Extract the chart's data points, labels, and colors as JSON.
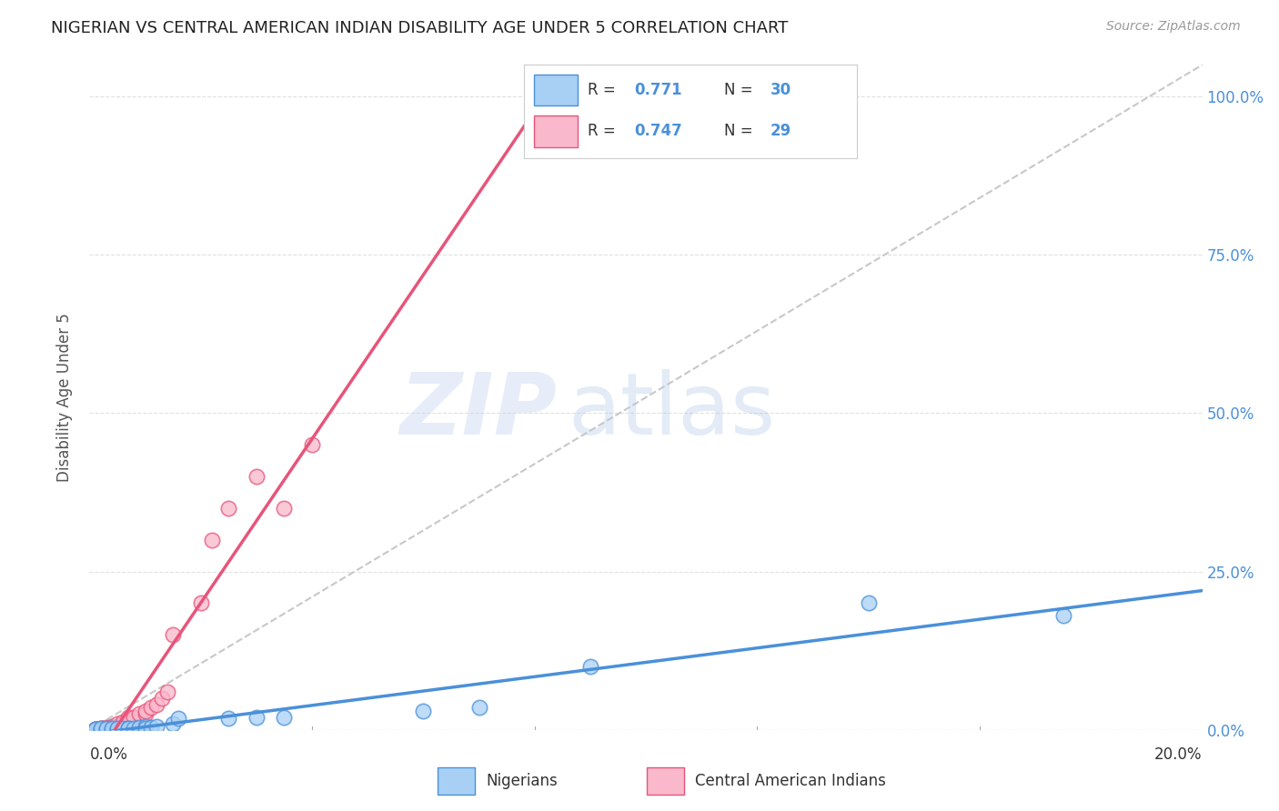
{
  "title": "NIGERIAN VS CENTRAL AMERICAN INDIAN DISABILITY AGE UNDER 5 CORRELATION CHART",
  "source": "Source: ZipAtlas.com",
  "ylabel": "Disability Age Under 5",
  "ytick_labels": [
    "0.0%",
    "25.0%",
    "50.0%",
    "75.0%",
    "100.0%"
  ],
  "ytick_values": [
    0.0,
    0.25,
    0.5,
    0.75,
    1.0
  ],
  "xmin": 0.0,
  "xmax": 0.2,
  "ymin": 0.0,
  "ymax": 1.05,
  "blue_color": "#A8D0F5",
  "pink_color": "#F9B8CC",
  "blue_line_color": "#4A90D9",
  "pink_line_color": "#E8547A",
  "diag_color": "#C8C8C8",
  "nigerian_x": [
    0.001,
    0.001,
    0.002,
    0.002,
    0.003,
    0.003,
    0.004,
    0.004,
    0.005,
    0.005,
    0.006,
    0.006,
    0.007,
    0.007,
    0.008,
    0.009,
    0.01,
    0.01,
    0.011,
    0.012,
    0.015,
    0.016,
    0.025,
    0.03,
    0.035,
    0.06,
    0.07,
    0.09,
    0.14,
    0.175
  ],
  "nigerian_y": [
    0.001,
    0.001,
    0.001,
    0.002,
    0.001,
    0.002,
    0.001,
    0.002,
    0.001,
    0.002,
    0.001,
    0.002,
    0.003,
    0.002,
    0.003,
    0.004,
    0.005,
    0.003,
    0.004,
    0.005,
    0.01,
    0.018,
    0.018,
    0.02,
    0.02,
    0.03,
    0.035,
    0.1,
    0.2,
    0.18
  ],
  "cai_x": [
    0.001,
    0.001,
    0.002,
    0.002,
    0.003,
    0.003,
    0.004,
    0.004,
    0.005,
    0.005,
    0.006,
    0.006,
    0.007,
    0.007,
    0.008,
    0.009,
    0.01,
    0.01,
    0.011,
    0.012,
    0.013,
    0.014,
    0.015,
    0.02,
    0.022,
    0.025,
    0.03,
    0.035,
    0.04
  ],
  "cai_y": [
    0.001,
    0.001,
    0.002,
    0.002,
    0.003,
    0.004,
    0.004,
    0.005,
    0.005,
    0.01,
    0.01,
    0.012,
    0.015,
    0.02,
    0.02,
    0.025,
    0.025,
    0.03,
    0.035,
    0.04,
    0.05,
    0.06,
    0.15,
    0.2,
    0.3,
    0.35,
    0.4,
    0.35,
    0.45
  ],
  "watermark_zip": "ZIP",
  "watermark_atlas": "atlas",
  "background_color": "#FFFFFF",
  "grid_color": "#E0E0E0"
}
